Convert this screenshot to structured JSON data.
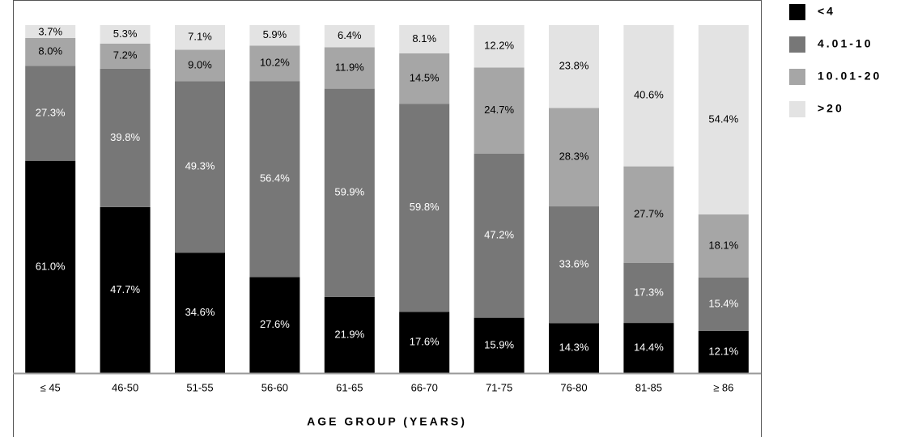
{
  "chart_data": {
    "type": "stacked-bar",
    "xlabel": "AGE GROUP (YEARS)",
    "categories": [
      "≤ 45",
      "46-50",
      "51-55",
      "56-60",
      "61-65",
      "66-70",
      "71-75",
      "76-80",
      "81-85",
      "≥ 86"
    ],
    "series": [
      {
        "name": "<4",
        "color": "#000000",
        "values": [
          61.0,
          47.7,
          34.6,
          27.6,
          21.9,
          17.6,
          15.9,
          14.3,
          14.4,
          12.1
        ],
        "value_labels": [
          "61.0%",
          "47.7%",
          "34.6%",
          "27.6%",
          "21.9%",
          "17.6%",
          "15.9%",
          "14.3%",
          "14.4%",
          "12.1%"
        ]
      },
      {
        "name": "4.01-10",
        "color": "#777777",
        "values": [
          27.3,
          39.8,
          49.3,
          56.4,
          59.9,
          59.8,
          47.2,
          33.6,
          17.3,
          15.4
        ],
        "value_labels": [
          "27.3%",
          "39.8%",
          "49.3%",
          "56.4%",
          "59.9%",
          "59.8%",
          "47.2%",
          "33.6%",
          "17.3%",
          "15.4%"
        ]
      },
      {
        "name": "10.01-20",
        "color": "#a6a6a6",
        "values": [
          8.0,
          7.2,
          9.0,
          10.2,
          11.9,
          14.5,
          24.7,
          28.3,
          27.7,
          18.1
        ],
        "value_labels": [
          "8.0%",
          "7.2%",
          "9.0%",
          "10.2%",
          "11.9%",
          "14.5%",
          "24.7%",
          "28.3%",
          "27.7%",
          "18.1%"
        ]
      },
      {
        "name": ">20",
        "color": "#e3e3e3",
        "values": [
          3.7,
          5.3,
          7.1,
          5.9,
          6.4,
          8.1,
          12.2,
          23.8,
          40.6,
          54.4
        ],
        "value_labels": [
          "3.7%",
          "5.3%",
          "7.1%",
          "5.9%",
          "6.4%",
          "8.1%",
          "12.2%",
          "23.8%",
          "40.6%",
          "54.4%"
        ]
      }
    ]
  }
}
